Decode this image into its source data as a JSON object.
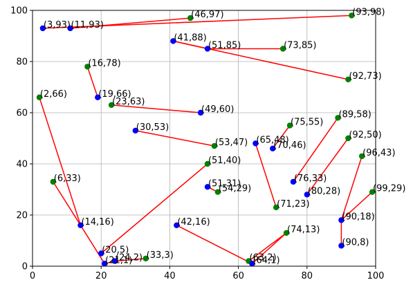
{
  "chart_data": {
    "type": "scatter",
    "title": "",
    "xlabel": "",
    "ylabel": "",
    "xlim": [
      0,
      100
    ],
    "ylim": [
      0,
      100
    ],
    "xticks": [
      0,
      20,
      40,
      60,
      80,
      100
    ],
    "yticks": [
      0,
      20,
      40,
      60,
      80,
      100
    ],
    "grid": true,
    "legend": false,
    "colors": {
      "blue": "#0000ff",
      "green": "#008000",
      "line": "#ff0000",
      "grid": "#b0b0b0"
    },
    "points": [
      {
        "x": 3,
        "y": 93,
        "label": "(3,93)",
        "color": "blue"
      },
      {
        "x": 11,
        "y": 93,
        "label": "(11,93)",
        "color": "blue"
      },
      {
        "x": 46,
        "y": 97,
        "label": "(46,97)",
        "color": "green"
      },
      {
        "x": 93,
        "y": 98,
        "label": "(93,98)",
        "color": "green"
      },
      {
        "x": 41,
        "y": 88,
        "label": "(41,88)",
        "color": "blue"
      },
      {
        "x": 51,
        "y": 85,
        "label": "(51,85)",
        "color": "blue"
      },
      {
        "x": 73,
        "y": 85,
        "label": "(73,85)",
        "color": "green"
      },
      {
        "x": 16,
        "y": 78,
        "label": "(16,78)",
        "color": "green"
      },
      {
        "x": 92,
        "y": 73,
        "label": "(92,73)",
        "color": "green"
      },
      {
        "x": 2,
        "y": 66,
        "label": "(2,66)",
        "color": "green"
      },
      {
        "x": 19,
        "y": 66,
        "label": "(19,66)",
        "color": "blue"
      },
      {
        "x": 23,
        "y": 63,
        "label": "(23,63)",
        "color": "green"
      },
      {
        "x": 49,
        "y": 60,
        "label": "(49,60)",
        "color": "blue"
      },
      {
        "x": 89,
        "y": 58,
        "label": "(89,58)",
        "color": "green"
      },
      {
        "x": 75,
        "y": 55,
        "label": "(75,55)",
        "color": "green"
      },
      {
        "x": 30,
        "y": 53,
        "label": "(30,53)",
        "color": "blue"
      },
      {
        "x": 92,
        "y": 50,
        "label": "(92,50)",
        "color": "green"
      },
      {
        "x": 65,
        "y": 48,
        "label": "(65,48)",
        "color": "blue"
      },
      {
        "x": 53,
        "y": 47,
        "label": "(53,47)",
        "color": "green"
      },
      {
        "x": 70,
        "y": 46,
        "label": "(70,46)",
        "color": "blue"
      },
      {
        "x": 96,
        "y": 43,
        "label": "(96,43)",
        "color": "green"
      },
      {
        "x": 51,
        "y": 40,
        "label": "(51,40)",
        "color": "green"
      },
      {
        "x": 6,
        "y": 33,
        "label": "(6,33)",
        "color": "green"
      },
      {
        "x": 76,
        "y": 33,
        "label": "(76,33)",
        "color": "blue"
      },
      {
        "x": 51,
        "y": 31,
        "label": "(51,31)",
        "color": "blue"
      },
      {
        "x": 54,
        "y": 29,
        "label": "(54,29)",
        "color": "green"
      },
      {
        "x": 99,
        "y": 29,
        "label": "(99,29)",
        "color": "green"
      },
      {
        "x": 80,
        "y": 28,
        "label": "(80,28)",
        "color": "blue"
      },
      {
        "x": 71,
        "y": 23,
        "label": "(71,23)",
        "color": "green"
      },
      {
        "x": 90,
        "y": 18,
        "label": "(90,18)",
        "color": "blue"
      },
      {
        "x": 14,
        "y": 16,
        "label": "(14,16)",
        "color": "blue"
      },
      {
        "x": 42,
        "y": 16,
        "label": "(42,16)",
        "color": "blue"
      },
      {
        "x": 74,
        "y": 13,
        "label": "(74,13)",
        "color": "green"
      },
      {
        "x": 90,
        "y": 8,
        "label": "(90,8)",
        "color": "blue"
      },
      {
        "x": 20,
        "y": 5,
        "label": "(20,5)",
        "color": "blue"
      },
      {
        "x": 33,
        "y": 3,
        "label": "(33,3)",
        "color": "green"
      },
      {
        "x": 24,
        "y": 2,
        "label": "(24,2)",
        "color": "blue"
      },
      {
        "x": 63,
        "y": 2,
        "label": "(63,2)",
        "color": "green"
      },
      {
        "x": 21,
        "y": 1,
        "label": "(21,1)",
        "color": "blue"
      },
      {
        "x": 64,
        "y": 1,
        "label": "(64,1)",
        "color": "blue"
      }
    ],
    "segments": [
      [
        [
          3,
          93
        ],
        [
          93,
          98
        ]
      ],
      [
        [
          11,
          93
        ],
        [
          46,
          97
        ]
      ],
      [
        [
          41,
          88
        ],
        [
          51,
          85
        ]
      ],
      [
        [
          51,
          85
        ],
        [
          73,
          85
        ]
      ],
      [
        [
          41,
          88
        ],
        [
          92,
          73
        ]
      ],
      [
        [
          16,
          78
        ],
        [
          19,
          66
        ]
      ],
      [
        [
          23,
          63
        ],
        [
          49,
          60
        ]
      ],
      [
        [
          30,
          53
        ],
        [
          53,
          47
        ]
      ],
      [
        [
          75,
          55
        ],
        [
          70,
          46
        ]
      ],
      [
        [
          89,
          58
        ],
        [
          76,
          33
        ]
      ],
      [
        [
          92,
          50
        ],
        [
          80,
          28
        ]
      ],
      [
        [
          65,
          48
        ],
        [
          71,
          23
        ]
      ],
      [
        [
          96,
          43
        ],
        [
          90,
          18
        ]
      ],
      [
        [
          99,
          29
        ],
        [
          90,
          18
        ]
      ],
      [
        [
          90,
          18
        ],
        [
          90,
          8
        ]
      ],
      [
        [
          51,
          31
        ],
        [
          54,
          29
        ]
      ],
      [
        [
          2,
          66
        ],
        [
          14,
          16
        ]
      ],
      [
        [
          6,
          33
        ],
        [
          14,
          16
        ]
      ],
      [
        [
          14,
          16
        ],
        [
          21,
          1
        ]
      ],
      [
        [
          51,
          40
        ],
        [
          20,
          5
        ]
      ],
      [
        [
          21,
          1
        ],
        [
          24,
          2
        ]
      ],
      [
        [
          24,
          2
        ],
        [
          33,
          3
        ]
      ],
      [
        [
          42,
          16
        ],
        [
          64,
          1
        ]
      ],
      [
        [
          63,
          2
        ],
        [
          74,
          13
        ]
      ],
      [
        [
          64,
          1
        ],
        [
          74,
          13
        ]
      ]
    ]
  }
}
